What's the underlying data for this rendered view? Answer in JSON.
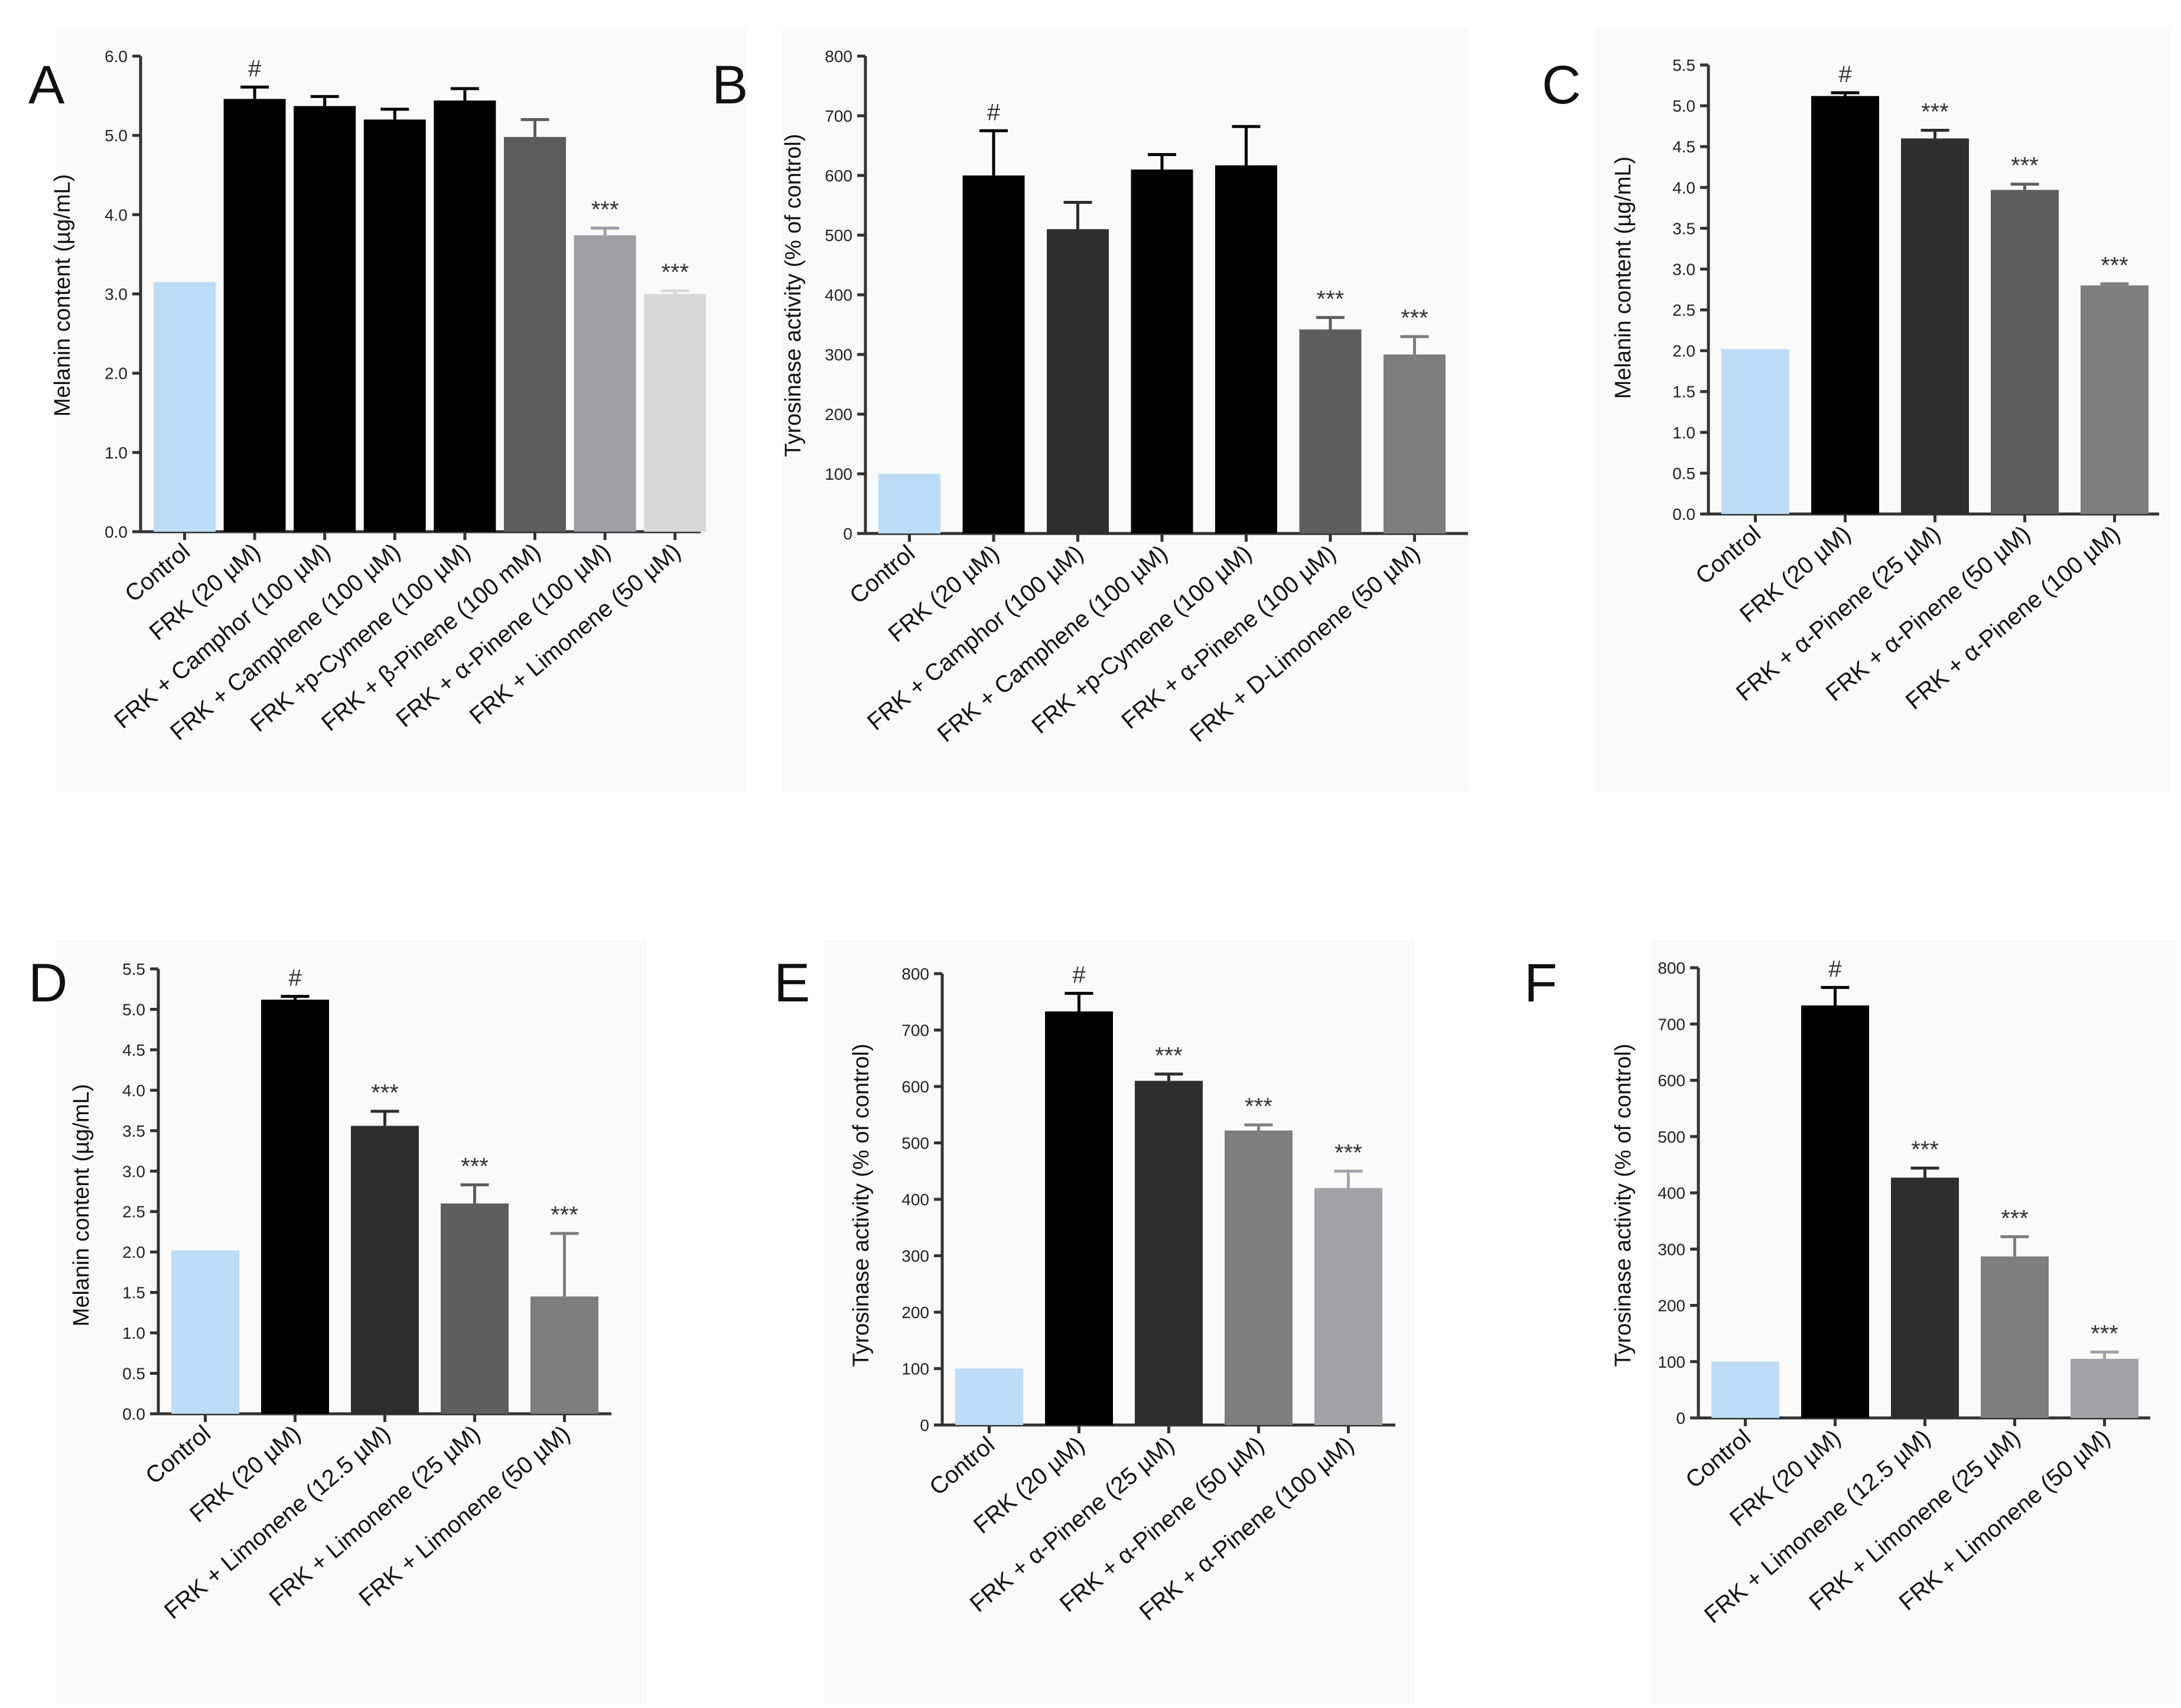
{
  "chart_data": [
    {
      "type": "bar",
      "panel": "A",
      "ylabel": "Melanin content (µg/mL)",
      "ylim": [
        0,
        6
      ],
      "yticks": [
        "0.0",
        "1.0",
        "2.0",
        "3.0",
        "4.0",
        "5.0",
        "6.0"
      ],
      "categories": [
        "Control",
        "FRK (20 µM)",
        "FRK + Camphor (100 µM)",
        "FRK + Camphene (100 µM)",
        "FRK +p-Cymene (100 µM)",
        "FRK + β-Pinene (100 mM)",
        "FRK + α-Pinene (100 µM)",
        "FRK + Limonene (50 µM)"
      ],
      "values": [
        3.15,
        5.46,
        5.37,
        5.2,
        5.44,
        4.98,
        3.74,
        3.0
      ],
      "errors": [
        0,
        0.15,
        0.12,
        0.13,
        0.15,
        0.22,
        0.09,
        0.04
      ],
      "annotations": [
        "",
        "#",
        "",
        "",
        "",
        "",
        "***",
        "***"
      ],
      "colors": [
        "#bcdcf7",
        "#000000",
        "#000000",
        "#000000",
        "#000000",
        "#5c5c5c",
        "#9e9ea3",
        "#d8d8d8"
      ]
    },
    {
      "type": "bar",
      "panel": "B",
      "ylabel": "Tyrosinase activity (% of control)",
      "ylim": [
        0,
        800
      ],
      "yticks": [
        "0",
        "100",
        "200",
        "300",
        "400",
        "500",
        "600",
        "700",
        "800"
      ],
      "categories": [
        "Control",
        "FRK (20 µM)",
        "FRK + Camphor (100 µM)",
        "FRK + Camphene (100 µM)",
        "FRK +p-Cymene (100 µM)",
        "FRK + α-Pinene (100 µM)",
        "FRK + D-Limonene (50 µM)"
      ],
      "values": [
        100,
        600,
        510,
        610,
        617,
        342,
        300
      ],
      "errors": [
        0,
        75,
        45,
        25,
        65,
        20,
        30
      ],
      "annotations": [
        "",
        "#",
        "",
        "",
        "",
        "***",
        "***"
      ],
      "colors": [
        "#bcdcf7",
        "#000000",
        "#2e2e2e",
        "#000000",
        "#000000",
        "#5e5e5e",
        "#7e7e7e"
      ]
    },
    {
      "type": "bar",
      "panel": "C",
      "ylabel": "Melanin content (µg/mL)",
      "ylim": [
        0,
        5.5
      ],
      "yticks": [
        "0.0",
        "0.5",
        "1.0",
        "1.5",
        "2.0",
        "2.5",
        "3.0",
        "3.5",
        "4.0",
        "4.5",
        "5.0",
        "5.5"
      ],
      "categories": [
        "Control",
        "FRK (20 µM)",
        "FRK + α-Pinene (25 µM)",
        "FRK + α-Pinene (50 µM)",
        "FRK + α-Pinene (100 µM)"
      ],
      "values": [
        2.02,
        5.12,
        4.6,
        3.97,
        2.8
      ],
      "errors": [
        0,
        0.04,
        0.1,
        0.07,
        0.02
      ],
      "annotations": [
        "",
        "#",
        "***",
        "***",
        "***"
      ],
      "colors": [
        "#bcdcf7",
        "#000000",
        "#2e2e2e",
        "#5e5e5e",
        "#7e7e7e"
      ]
    },
    {
      "type": "bar",
      "panel": "D",
      "ylabel": "Melanin content (µg/mL)",
      "ylim": [
        0,
        5.5
      ],
      "yticks": [
        "0.0",
        "0.5",
        "1.0",
        "1.5",
        "2.0",
        "2.5",
        "3.0",
        "3.5",
        "4.0",
        "4.5",
        "5.0",
        "5.5"
      ],
      "categories": [
        "Control",
        "FRK (20 µM)",
        "FRK + Limonene (12.5 µM)",
        "FRK + Limonene (25 µM)",
        "FRK + Limonene (50 µM)"
      ],
      "values": [
        2.02,
        5.12,
        3.56,
        2.6,
        1.45
      ],
      "errors": [
        0,
        0.04,
        0.18,
        0.23,
        0.78
      ],
      "annotations": [
        "",
        "#",
        "***",
        "***",
        "***"
      ],
      "colors": [
        "#bcdcf7",
        "#000000",
        "#2e2e2e",
        "#5e5e5e",
        "#7e7e7e"
      ]
    },
    {
      "type": "bar",
      "panel": "E",
      "ylabel": "Tyrosinase activity (% of control)",
      "ylim": [
        0,
        800
      ],
      "yticks": [
        "0",
        "100",
        "200",
        "300",
        "400",
        "500",
        "600",
        "700",
        "800"
      ],
      "categories": [
        "Control",
        "FRK (20 µM)",
        "FRK + α-Pinene (25 µM)",
        "FRK + α-Pinene (50 µM)",
        "FRK + α-Pinene (100 µM)"
      ],
      "values": [
        100,
        733,
        610,
        522,
        420
      ],
      "errors": [
        0,
        32,
        12,
        10,
        30
      ],
      "annotations": [
        "",
        "#",
        "***",
        "***",
        "***"
      ],
      "colors": [
        "#bcdcf7",
        "#000000",
        "#2e2e2e",
        "#7e7e7e",
        "#a2a2a7"
      ]
    },
    {
      "type": "bar",
      "panel": "F",
      "ylabel": "Tyrosinase activity (% of control)",
      "ylim": [
        0,
        800
      ],
      "yticks": [
        "0",
        "100",
        "200",
        "300",
        "400",
        "500",
        "600",
        "700",
        "800"
      ],
      "categories": [
        "Control",
        "FRK (20 µM)",
        "FRK + Limonene (12.5 µM)",
        "FRK + Limonene (25 µM)",
        "FRK + Limonene (50 µM)"
      ],
      "values": [
        100,
        733,
        427,
        287,
        105
      ],
      "errors": [
        0,
        32,
        17,
        35,
        12
      ],
      "annotations": [
        "",
        "#",
        "***",
        "***",
        "***"
      ],
      "colors": [
        "#bcdcf7",
        "#000000",
        "#2e2e2e",
        "#7e7e7e",
        "#a2a2a7"
      ]
    }
  ]
}
